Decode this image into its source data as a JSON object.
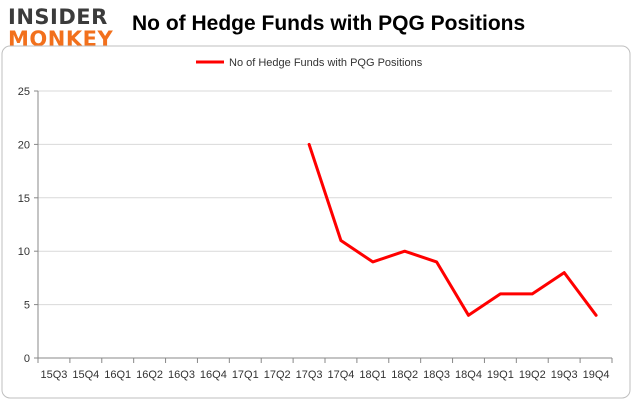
{
  "logo": {
    "line1": "INSIDER",
    "line2": "MONKEY"
  },
  "chart_data": {
    "type": "line",
    "title": "No of Hedge Funds with PQG Positions",
    "xlabel": "",
    "ylabel": "",
    "categories": [
      "15Q3",
      "15Q4",
      "16Q1",
      "16Q2",
      "16Q3",
      "16Q4",
      "17Q1",
      "17Q2",
      "17Q3",
      "17Q4",
      "18Q1",
      "18Q2",
      "18Q3",
      "18Q4",
      "19Q1",
      "19Q2",
      "19Q3",
      "19Q4"
    ],
    "series": [
      {
        "name": "No of Hedge Funds with PQG Positions",
        "color": "#ff0000",
        "values": [
          null,
          null,
          null,
          null,
          null,
          null,
          null,
          null,
          20,
          11,
          9,
          10,
          9,
          4,
          6,
          6,
          8,
          4
        ]
      }
    ],
    "ylim": [
      0,
      25
    ],
    "yticks": [
      0,
      5,
      10,
      15,
      20,
      25
    ],
    "grid": true,
    "legend": "top-center",
    "colors": {
      "line": "#ff0000",
      "grid": "#d9d9d9",
      "axis": "#888888",
      "frame": "#bfbfbf"
    }
  }
}
